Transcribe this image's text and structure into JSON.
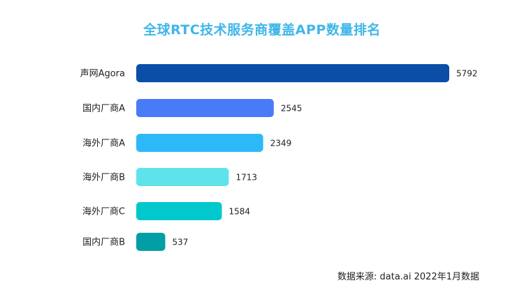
{
  "title": "全球RTC技术服务商覆盖APP数量排名",
  "source": "数据来源: data.ai 2022年1月数据",
  "chart_data": {
    "type": "bar",
    "orientation": "horizontal",
    "title": "全球RTC技术服务商覆盖APP数量排名",
    "xlabel": "",
    "ylabel": "",
    "categories": [
      "声网Agora",
      "国内厂商A",
      "海外厂商A",
      "海外厂商B",
      "海外厂商C",
      "国内厂商B"
    ],
    "values": [
      5792,
      2545,
      2349,
      1713,
      1584,
      537
    ],
    "colors": [
      "#0b4ea8",
      "#4a7bf7",
      "#2db9f8",
      "#5ee3eb",
      "#00c8cc",
      "#009fa6"
    ],
    "grid": false,
    "legend": "none",
    "xlim": [
      0,
      5792
    ]
  }
}
